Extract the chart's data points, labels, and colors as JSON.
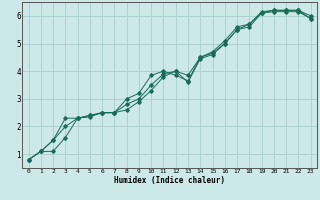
{
  "xlabel": "Humidex (Indice chaleur)",
  "ylabel": "",
  "bg_color": "#cce8e8",
  "grid_color": "#aacccc",
  "line_color": "#1a6b5a",
  "xlim": [
    -0.5,
    23.5
  ],
  "ylim": [
    0.5,
    6.5
  ],
  "xticks": [
    0,
    1,
    2,
    3,
    4,
    5,
    6,
    7,
    8,
    9,
    10,
    11,
    12,
    13,
    14,
    15,
    16,
    17,
    18,
    19,
    20,
    21,
    22,
    23
  ],
  "yticks": [
    1,
    2,
    3,
    4,
    5,
    6
  ],
  "series": {
    "line1": {
      "x": [
        0,
        1,
        2,
        3,
        4,
        5,
        6,
        7,
        8,
        9,
        10,
        11,
        12,
        13,
        14,
        15,
        16,
        17,
        18,
        19,
        20,
        21,
        22,
        23
      ],
      "y": [
        0.8,
        1.1,
        1.1,
        1.6,
        2.3,
        2.35,
        2.5,
        2.5,
        2.8,
        3.0,
        3.5,
        3.9,
        4.0,
        3.6,
        4.45,
        4.6,
        5.0,
        5.5,
        5.6,
        6.1,
        6.2,
        6.2,
        6.2,
        5.9
      ]
    },
    "line2": {
      "x": [
        0,
        1,
        2,
        3,
        4,
        5,
        6,
        7,
        8,
        9,
        10,
        11,
        12,
        13,
        14,
        15,
        16,
        17,
        18,
        19,
        20,
        21,
        22,
        23
      ],
      "y": [
        0.8,
        1.1,
        1.5,
        2.3,
        2.3,
        2.4,
        2.5,
        2.5,
        3.0,
        3.2,
        3.85,
        4.0,
        3.85,
        3.65,
        4.5,
        4.7,
        5.1,
        5.6,
        5.7,
        6.15,
        6.2,
        6.2,
        6.2,
        6.0
      ]
    },
    "line3": {
      "x": [
        0,
        1,
        2,
        3,
        4,
        5,
        6,
        7,
        8,
        9,
        10,
        11,
        12,
        13,
        14,
        15,
        16,
        17,
        18,
        19,
        20,
        21,
        22,
        23
      ],
      "y": [
        0.8,
        1.1,
        1.5,
        2.0,
        2.3,
        2.4,
        2.5,
        2.5,
        2.6,
        2.9,
        3.3,
        3.8,
        4.0,
        3.85,
        4.5,
        4.65,
        5.0,
        5.5,
        5.7,
        6.1,
        6.15,
        6.15,
        6.15,
        5.9
      ]
    }
  }
}
